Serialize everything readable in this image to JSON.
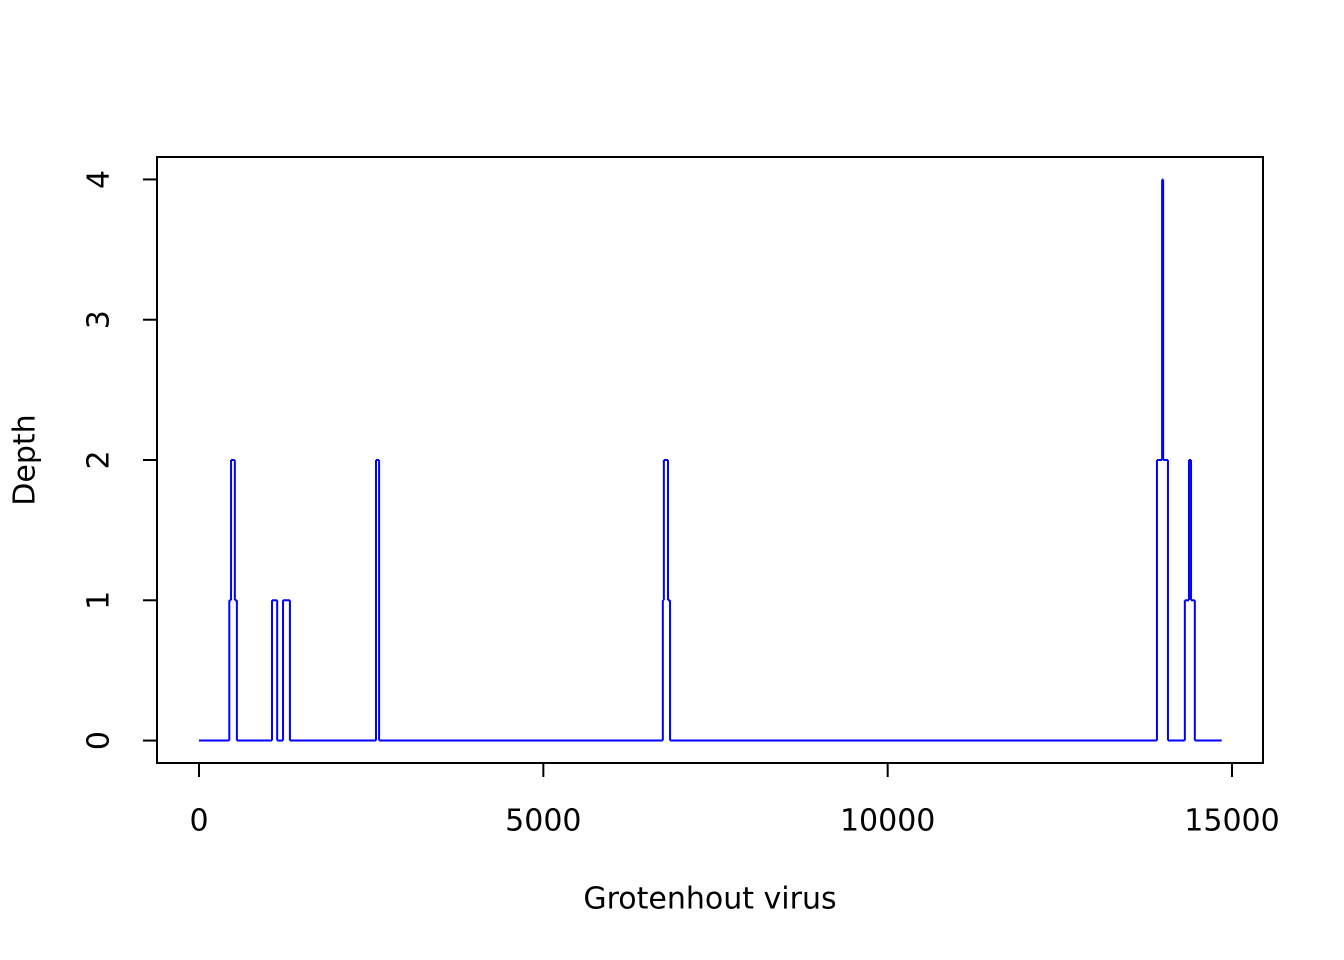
{
  "chart_data": {
    "type": "step",
    "xlabel": "Grotenhout virus",
    "ylabel": "Depth",
    "x": [
      0,
      440,
      465,
      520,
      550,
      1060,
      1135,
      1220,
      1320,
      2570,
      2615,
      6735,
      6750,
      6810,
      6840,
      13910,
      13985,
      14000,
      14070,
      14315,
      14375,
      14405,
      14460,
      14850
    ],
    "series": [
      {
        "name": "Depth",
        "color": "#0000ff",
        "values": [
          0,
          1,
          2,
          1,
          0,
          1,
          0,
          1,
          0,
          2,
          0,
          1,
          2,
          1,
          0,
          2,
          4,
          2,
          0,
          1,
          2,
          1,
          0,
          0
        ]
      }
    ],
    "xlim": [
      -610,
      15450
    ],
    "xticks": [
      0,
      5000,
      10000,
      15000
    ],
    "ylim": [
      -0.16,
      4.16
    ],
    "yticks": [
      0,
      1,
      2,
      3,
      4
    ]
  }
}
